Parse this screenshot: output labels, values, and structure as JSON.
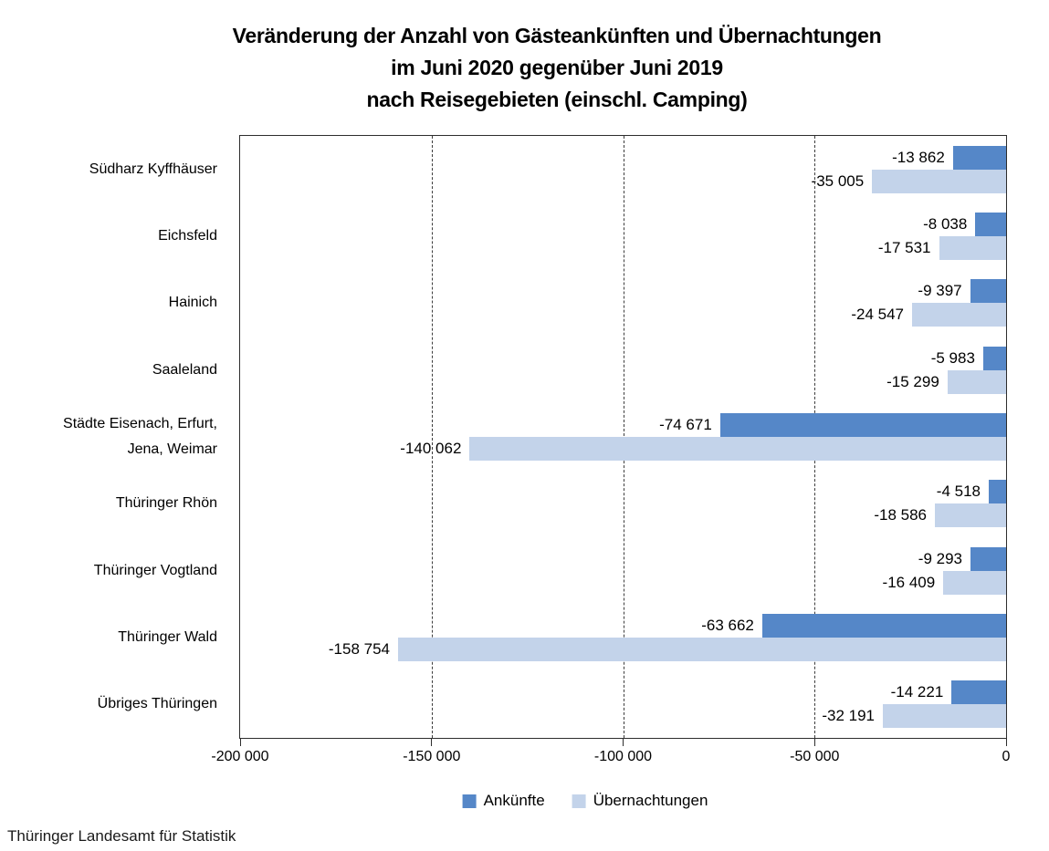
{
  "title": {
    "line1": "Veränderung der Anzahl von Gästeankünften und Übernachtungen",
    "line2": "im Juni 2020 gegenüber Juni 2019",
    "line3": "nach Reisegebieten (einschl. Camping)"
  },
  "source": "Thüringer Landesamt für Statistik",
  "chart_data": {
    "type": "bar",
    "orientation": "horizontal",
    "title": "Veränderung der Anzahl von Gästeankünften und Übernachtungen im Juni 2020 gegenüber Juni 2019 nach Reisegebieten (einschl. Camping)",
    "categories": [
      "Südharz Kyffhäuser",
      "Eichsfeld",
      "Hainich",
      "Saaleland",
      "Städte Eisenach, Erfurt,\nJena, Weimar",
      "Thüringer Rhön",
      "Thüringer Vogtland",
      "Thüringer Wald",
      "Übriges Thüringen"
    ],
    "series": [
      {
        "name": "Ankünfte",
        "color": "#5587C8",
        "values": [
          -13862,
          -8038,
          -9397,
          -5983,
          -74671,
          -4518,
          -9293,
          -63662,
          -14221
        ],
        "value_labels": [
          "-13 862",
          "-8 038",
          "-9 397",
          "-5 983",
          "-74 671",
          "-4 518",
          "-9 293",
          "-63 662",
          "-14 221"
        ]
      },
      {
        "name": "Übernachtungen",
        "color": "#C3D3EA",
        "values": [
          -35005,
          -17531,
          -24547,
          -15299,
          -140062,
          -18586,
          -16409,
          -158754,
          -32191
        ],
        "value_labels": [
          "-35 005",
          "-17 531",
          "-24 547",
          "-15 299",
          "-140 062",
          "-18 586",
          "-16 409",
          "-158 754",
          "-32 191"
        ]
      }
    ],
    "xlim": [
      -200000,
      0
    ],
    "xticks": [
      {
        "value": -200000,
        "label": "-200 000"
      },
      {
        "value": -150000,
        "label": "-150 000"
      },
      {
        "value": -100000,
        "label": "-100 000"
      },
      {
        "value": -50000,
        "label": "-50 000"
      },
      {
        "value": 0,
        "label": "0"
      }
    ],
    "gridlines": [
      -150000,
      -100000,
      -50000
    ],
    "grid_style": "vertical-dashed",
    "legend_position": "bottom-center"
  }
}
